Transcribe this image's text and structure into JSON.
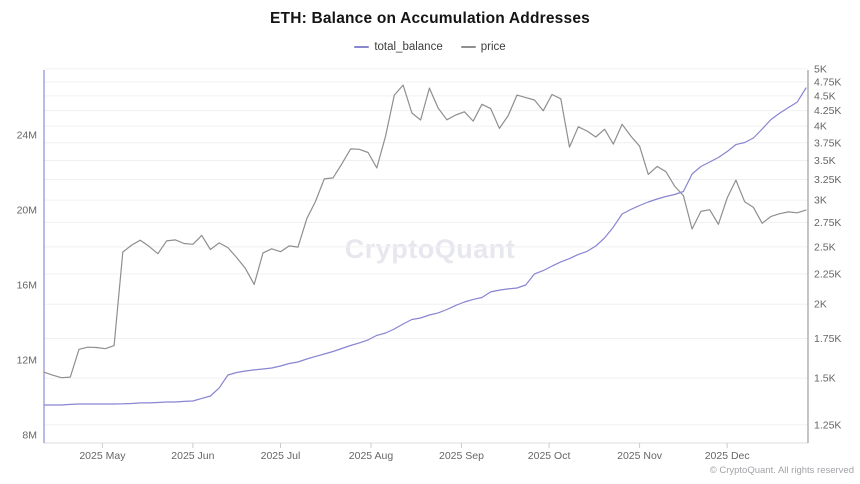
{
  "title": "ETH: Balance on Accumulation Addresses",
  "legend": [
    {
      "label": "total_balance",
      "color": "#8885d1"
    },
    {
      "label": "price",
      "color": "#8f8f8f"
    }
  ],
  "watermark": "CryptoQuant",
  "footer": "© CryptoQuant. All rights reserved",
  "colors": {
    "total_balance_line": "#8885d1",
    "price_line": "#8f8f8f",
    "left_axis_line": "#8f8cd6",
    "right_axis_line": "#9e9e9e",
    "bottom_axis_line": "#dddddd",
    "tick_mark": "#cccccc",
    "gridline": "#f0f0f4",
    "axis_text": "#666666"
  },
  "chart_data": {
    "type": "line",
    "title": "ETH: Balance on Accumulation Addresses",
    "start_date": "2025-04-11",
    "interval_days": 3,
    "x_axis": {
      "tick_labels": [
        "2025 May",
        "2025 Jun",
        "2025 Jul",
        "2025 Aug",
        "2025 Sep",
        "2025 Oct",
        "2025 Nov",
        "2025 Dec"
      ],
      "tick_day_offsets": [
        20,
        51,
        81,
        112,
        143,
        173,
        204,
        234
      ]
    },
    "left_axis": {
      "scale": "linear",
      "tick_labels": [
        "24M",
        "20M",
        "16M",
        "12M",
        "8M"
      ],
      "tick_values": [
        24,
        20,
        16,
        12,
        8
      ],
      "range": [
        7.57,
        27.47
      ]
    },
    "right_axis": {
      "scale": "log",
      "tick_labels": [
        "5K",
        "4.75K",
        "4.5K",
        "4.25K",
        "4K",
        "3.75K",
        "3.5K",
        "3.25K",
        "3K",
        "2.75K",
        "2.5K",
        "2.25K",
        "2K",
        "1.75K",
        "1.5K",
        "1.25K"
      ],
      "tick_values": [
        5000,
        4750,
        4500,
        4250,
        4000,
        3750,
        3500,
        3250,
        3000,
        2750,
        2500,
        2250,
        2000,
        1750,
        1500,
        1250
      ],
      "range": [
        1165,
        4978
      ]
    },
    "grid": "right_axis_ticks",
    "legend_position": "top-center",
    "series": [
      {
        "name": "total_balance",
        "axis": "left",
        "color": "#8885d1",
        "values": [
          9.6,
          9.6,
          9.6,
          9.63,
          9.65,
          9.65,
          9.65,
          9.65,
          9.65,
          9.66,
          9.68,
          9.71,
          9.71,
          9.73,
          9.76,
          9.76,
          9.79,
          9.81,
          9.95,
          10.08,
          10.51,
          11.2,
          11.33,
          11.41,
          11.47,
          11.52,
          11.57,
          11.68,
          11.81,
          11.89,
          12.05,
          12.19,
          12.32,
          12.45,
          12.61,
          12.77,
          12.91,
          13.07,
          13.31,
          13.44,
          13.65,
          13.92,
          14.16,
          14.24,
          14.4,
          14.51,
          14.69,
          14.91,
          15.09,
          15.23,
          15.33,
          15.63,
          15.73,
          15.79,
          15.84,
          16.0,
          16.59,
          16.77,
          17.01,
          17.23,
          17.41,
          17.63,
          17.79,
          18.08,
          18.51,
          19.09,
          19.79,
          20.03,
          20.24,
          20.43,
          20.59,
          20.72,
          20.83,
          20.99,
          21.92,
          22.32,
          22.56,
          22.8,
          23.12,
          23.49,
          23.6,
          23.84,
          24.32,
          24.83,
          25.17,
          25.47,
          25.76,
          26.51
        ]
      },
      {
        "name": "price",
        "axis": "right",
        "color": "#8f8f8f",
        "values": [
          1535,
          1517,
          1502,
          1506,
          1678,
          1692,
          1690,
          1682,
          1702,
          2450,
          2517,
          2566,
          2505,
          2435,
          2559,
          2569,
          2533,
          2525,
          2614,
          2475,
          2539,
          2493,
          2398,
          2299,
          2160,
          2442,
          2481,
          2454,
          2510,
          2498,
          2790,
          2985,
          3258,
          3270,
          3454,
          3662,
          3655,
          3610,
          3400,
          3850,
          4515,
          4694,
          4210,
          4097,
          4639,
          4294,
          4100,
          4178,
          4230,
          4080,
          4355,
          4283,
          3965,
          4168,
          4515,
          4470,
          4429,
          4247,
          4525,
          4450,
          3687,
          3990,
          3925,
          3835,
          3953,
          3730,
          4030,
          3850,
          3700,
          3315,
          3420,
          3350,
          3168,
          3053,
          2680,
          2870,
          2890,
          2730,
          3025,
          3243,
          2980,
          2915,
          2740,
          2815,
          2845,
          2865,
          2855,
          2885
        ]
      }
    ]
  }
}
